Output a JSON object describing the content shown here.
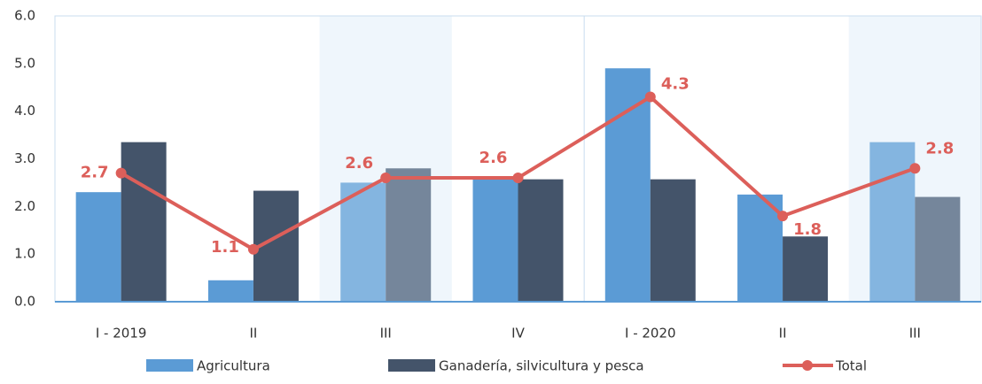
{
  "chart_data": {
    "type": "bar",
    "categories": [
      "I - 2019",
      "II",
      "III",
      "IV",
      "I - 2020",
      "II",
      "III"
    ],
    "series": [
      {
        "name": "Agricultura",
        "type": "bar",
        "color": "#5b9bd5",
        "values": [
          2.3,
          0.45,
          2.5,
          2.6,
          4.9,
          2.25,
          3.35
        ]
      },
      {
        "name": "Ganadería, silvicultura y pesca",
        "type": "bar",
        "color": "#44546a",
        "values": [
          3.35,
          2.33,
          2.8,
          2.57,
          2.57,
          1.37,
          2.2
        ]
      },
      {
        "name": "Total",
        "type": "line",
        "color": "#dc5f5a",
        "values": [
          2.7,
          1.1,
          2.6,
          2.6,
          4.3,
          1.8,
          2.8
        ]
      }
    ],
    "ylim": [
      0,
      6
    ],
    "yticks": [
      {
        "value": 0,
        "label": "0.0"
      },
      {
        "value": 1,
        "label": "1.0"
      },
      {
        "value": 2,
        "label": "2.0"
      },
      {
        "value": 3,
        "label": "3.0"
      },
      {
        "value": 4,
        "label": "4.0"
      },
      {
        "value": 5,
        "label": "5.0"
      },
      {
        "value": 6,
        "label": "6.0"
      }
    ]
  }
}
